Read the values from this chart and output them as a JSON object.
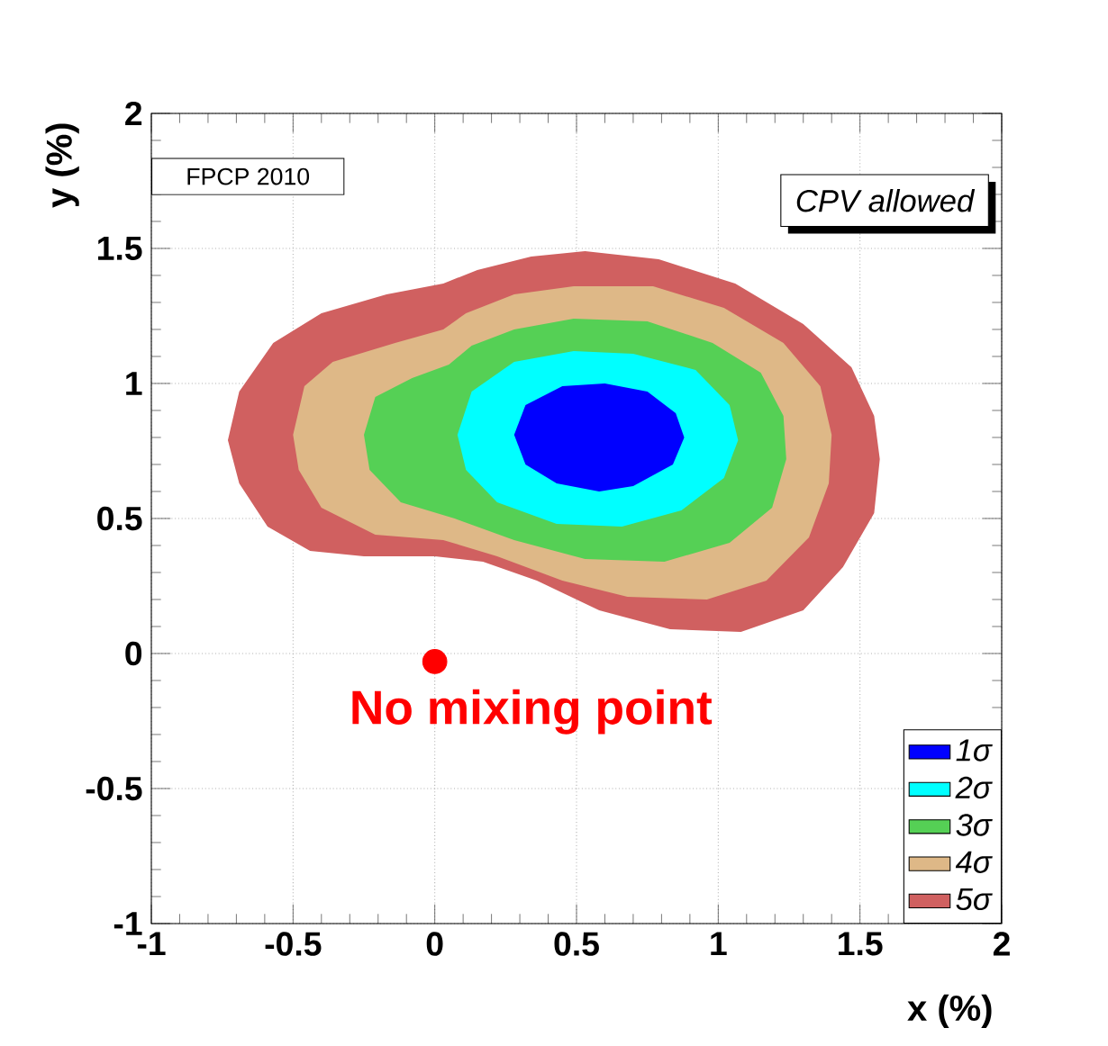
{
  "chart_data": {
    "type": "area",
    "xlabel": "x (%)",
    "ylabel": "y (%)",
    "xlim": [
      -1,
      2
    ],
    "ylim": [
      -1,
      2
    ],
    "xticks": [
      -1,
      -0.5,
      0,
      0.5,
      1,
      1.5,
      2
    ],
    "yticks": [
      -1,
      -0.5,
      0,
      0.5,
      1,
      1.5,
      2
    ],
    "grid": true,
    "legend": "bottom right",
    "annotations": [
      "FPCP 2010",
      "CPV allowed",
      {
        "text": "No mixing point",
        "x": 0,
        "y": -0.03
      }
    ],
    "series": [
      {
        "name": "1σ",
        "color": "#0000ff",
        "x": [
          0.28,
          0.32,
          0.45,
          0.6,
          0.75,
          0.85,
          0.88,
          0.84,
          0.7,
          0.58,
          0.43,
          0.32
        ],
        "values": [
          0.81,
          0.92,
          0.99,
          1.0,
          0.97,
          0.89,
          0.8,
          0.7,
          0.62,
          0.6,
          0.63,
          0.7
        ]
      },
      {
        "name": "2σ",
        "color": "#00ffff",
        "x": [
          0.08,
          0.13,
          0.28,
          0.49,
          0.7,
          0.92,
          1.04,
          1.07,
          1.02,
          0.87,
          0.66,
          0.43,
          0.22,
          0.11
        ],
        "values": [
          0.81,
          0.97,
          1.08,
          1.12,
          1.11,
          1.05,
          0.92,
          0.79,
          0.65,
          0.53,
          0.47,
          0.48,
          0.56,
          0.68
        ]
      },
      {
        "name": "3σ",
        "color": "#55d055",
        "x": [
          -0.25,
          -0.21,
          -0.08,
          0.05,
          0.13,
          0.28,
          0.49,
          0.75,
          0.98,
          1.15,
          1.23,
          1.24,
          1.19,
          1.04,
          0.81,
          0.53,
          0.28,
          0.07,
          -0.12,
          -0.23
        ],
        "values": [
          0.81,
          0.95,
          1.02,
          1.07,
          1.14,
          1.2,
          1.24,
          1.23,
          1.15,
          1.04,
          0.88,
          0.72,
          0.54,
          0.41,
          0.34,
          0.35,
          0.42,
          0.5,
          0.56,
          0.68
        ]
      },
      {
        "name": "4σ",
        "color": "#deb887",
        "x": [
          -0.5,
          -0.46,
          -0.36,
          -0.14,
          0.03,
          0.11,
          0.28,
          0.49,
          0.77,
          1.02,
          1.23,
          1.36,
          1.4,
          1.39,
          1.32,
          1.17,
          0.96,
          0.68,
          0.45,
          0.22,
          0.03,
          -0.21,
          -0.4,
          -0.48
        ],
        "values": [
          0.81,
          0.99,
          1.08,
          1.15,
          1.2,
          1.26,
          1.33,
          1.36,
          1.36,
          1.28,
          1.15,
          0.99,
          0.81,
          0.63,
          0.43,
          0.27,
          0.2,
          0.21,
          0.27,
          0.36,
          0.42,
          0.44,
          0.54,
          0.68
        ]
      },
      {
        "name": "5σ",
        "color": "#d06060",
        "x": [
          -0.73,
          -0.69,
          -0.57,
          -0.4,
          -0.17,
          0.03,
          0.15,
          0.34,
          0.53,
          0.79,
          1.06,
          1.3,
          1.47,
          1.55,
          1.57,
          1.55,
          1.44,
          1.3,
          1.08,
          0.83,
          0.58,
          0.36,
          0.17,
          0.0,
          -0.25,
          -0.44,
          -0.59,
          -0.69
        ],
        "values": [
          0.79,
          0.97,
          1.15,
          1.26,
          1.33,
          1.37,
          1.42,
          1.47,
          1.49,
          1.46,
          1.37,
          1.22,
          1.06,
          0.88,
          0.72,
          0.52,
          0.32,
          0.16,
          0.08,
          0.09,
          0.16,
          0.27,
          0.34,
          0.36,
          0.36,
          0.38,
          0.47,
          0.63
        ]
      },
      {
        "type": "scatter",
        "marker": "circle",
        "color": "#ff0000",
        "x": [
          0
        ],
        "values": [
          -0.03
        ]
      }
    ]
  }
}
